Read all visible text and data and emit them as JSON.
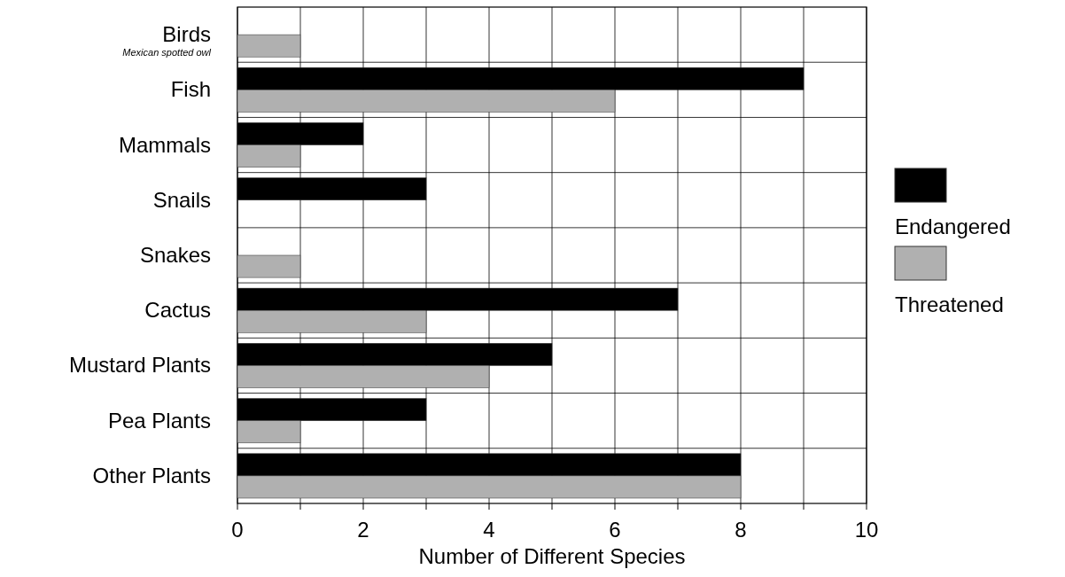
{
  "chart_data": {
    "type": "bar",
    "orientation": "horizontal",
    "xlabel": "Number of Different Species",
    "categories": [
      "Birds",
      "Fish",
      "Mammals",
      "Snails",
      "Snakes",
      "Cactus",
      "Mustard Plants",
      "Pea Plants",
      "Other Plants"
    ],
    "series": [
      {
        "name": "Endangered",
        "color": "#000000",
        "values": [
          0,
          9,
          2,
          3,
          0,
          7,
          5,
          3,
          8
        ]
      },
      {
        "name": "Threatened",
        "color": "#b0b0b0",
        "values": [
          1,
          6,
          1,
          0,
          1,
          3,
          4,
          1,
          8
        ]
      }
    ],
    "xlim": [
      0,
      10
    ],
    "xticks": [
      0,
      {
        "value": 1,
        "label": null
      },
      2,
      {
        "value": 3,
        "label": null
      },
      4,
      {
        "value": 5,
        "label": null
      },
      6,
      {
        "value": 7,
        "label": null
      },
      8,
      {
        "value": 9,
        "label": null
      },
      10
    ],
    "grid": "x",
    "legend": "right",
    "annotations": [
      "Mexican spotted owl"
    ]
  }
}
